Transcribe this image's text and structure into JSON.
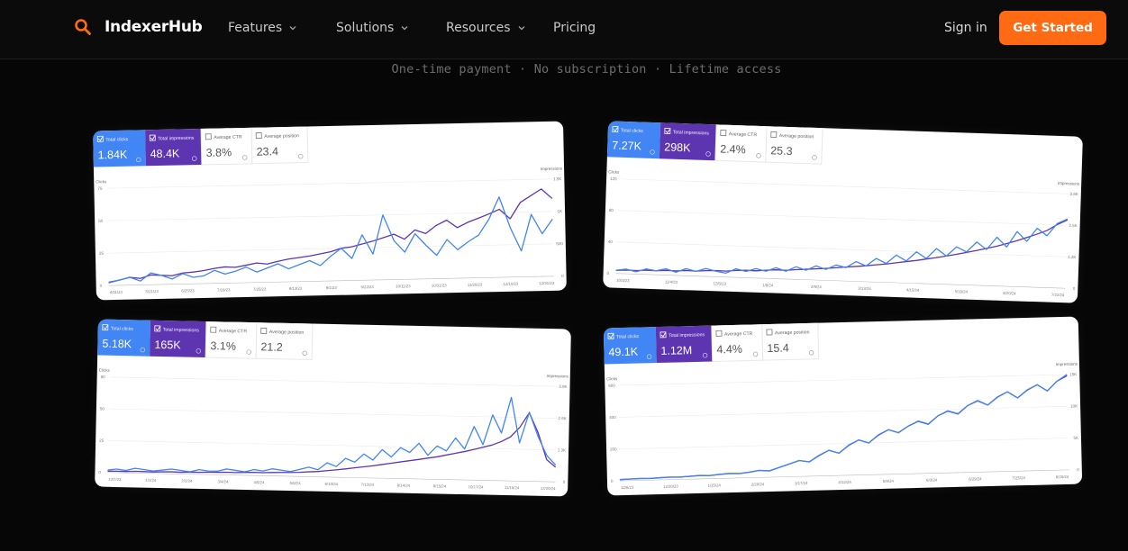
{
  "nav": {
    "brand": "IndexerHub",
    "brand_icon": "search-icon",
    "accent_color": "#ff6a13",
    "menu": [
      {
        "label": "Features",
        "has_dropdown": true
      },
      {
        "label": "Solutions",
        "has_dropdown": true
      },
      {
        "label": "Resources",
        "has_dropdown": true
      },
      {
        "label": "Pricing",
        "has_dropdown": false
      }
    ],
    "sign_in": "Sign in",
    "cta": "Get Started"
  },
  "tagline": "One-time payment · No subscription · Lifetime access",
  "chart_data": [
    {
      "type": "line",
      "metrics": [
        {
          "label": "Total clicks",
          "value": "1.84K",
          "color": "#4285f4"
        },
        {
          "label": "Total impressions",
          "value": "48.4K",
          "color": "#5e35b1"
        },
        {
          "label": "Average CTR",
          "value": "3.8%"
        },
        {
          "label": "Average position",
          "value": "23.4"
        }
      ],
      "ylabel": "Clicks",
      "y2label": "Impressions",
      "yticks": [
        "75",
        "50",
        "25",
        "0"
      ],
      "y2ticks": [
        "1.5K",
        "1K",
        "500",
        "0"
      ],
      "ylim": [
        0,
        75
      ],
      "y2lim": [
        0,
        1500
      ],
      "xticks": [
        "4/11/23",
        "5/21/23",
        "6/25/23",
        "7/19/23",
        "7/25/23",
        "8/13/23",
        "9/1/23",
        "9/22/23",
        "10/11/23",
        "10/31/23",
        "11/20/23",
        "12/10/23",
        "12/31/23"
      ],
      "series": [
        {
          "name": "Total clicks",
          "color": "#4285f4",
          "values": [
            2,
            4,
            6,
            3,
            9,
            7,
            4,
            8,
            5,
            6,
            10,
            7,
            9,
            12,
            8,
            11,
            14,
            10,
            13,
            16,
            12,
            19,
            25,
            17,
            35,
            20,
            50,
            30,
            21,
            35,
            26,
            18,
            30,
            22,
            28,
            33,
            45,
            62,
            38,
            20,
            48,
            33,
            44
          ]
        },
        {
          "name": "Total impressions",
          "color": "#5e35b1",
          "values": [
            50,
            80,
            120,
            100,
            150,
            140,
            130,
            170,
            180,
            200,
            230,
            250,
            240,
            270,
            300,
            280,
            320,
            350,
            370,
            390,
            420,
            450,
            500,
            520,
            560,
            600,
            650,
            700,
            620,
            760,
            700,
            820,
            900,
            780,
            860,
            920,
            980,
            1050,
            900,
            1150,
            1250,
            1350,
            1200
          ]
        }
      ]
    },
    {
      "type": "line",
      "metrics": [
        {
          "label": "Total clicks",
          "value": "7.27K",
          "color": "#4285f4"
        },
        {
          "label": "Total impressions",
          "value": "298K",
          "color": "#5e35b1"
        },
        {
          "label": "Average CTR",
          "value": "2.4%"
        },
        {
          "label": "Average position",
          "value": "25.3"
        }
      ],
      "ylabel": "Clicks",
      "y2label": "Impressions",
      "yticks": [
        "120",
        "80",
        "40",
        "0"
      ],
      "y2ticks": [
        "3.8K",
        "2.5K",
        "1.3K",
        "0"
      ],
      "ylim": [
        0,
        120
      ],
      "y2lim": [
        0,
        3800
      ],
      "xticks": [
        "10/3/23",
        "11/4/23",
        "12/6/23",
        "1/8/24",
        "2/9/24",
        "3/13/24",
        "4/15/24",
        "5/18/24",
        "6/20/24",
        "7/22/24"
      ],
      "series": [
        {
          "name": "Total clicks",
          "color": "#4285f4",
          "values": [
            4,
            6,
            3,
            7,
            5,
            8,
            4,
            9,
            6,
            10,
            7,
            5,
            11,
            8,
            12,
            9,
            14,
            10,
            16,
            12,
            18,
            14,
            20,
            17,
            25,
            20,
            30,
            24,
            35,
            28,
            40,
            32,
            45,
            36,
            48,
            42,
            55,
            46,
            62,
            50,
            70,
            58,
            75,
            66,
            82,
            88
          ]
        },
        {
          "name": "Total impressions",
          "color": "#5e35b1",
          "values": [
            120,
            150,
            140,
            170,
            160,
            190,
            180,
            210,
            200,
            230,
            250,
            240,
            280,
            300,
            290,
            330,
            360,
            350,
            390,
            420,
            450,
            480,
            520,
            560,
            600,
            640,
            690,
            740,
            800,
            860,
            920,
            990,
            1060,
            1140,
            1220,
            1310,
            1400,
            1500,
            1600,
            1720,
            1850,
            1990,
            2140,
            2300,
            2550,
            2750
          ]
        }
      ]
    },
    {
      "type": "line",
      "metrics": [
        {
          "label": "Total clicks",
          "value": "5.18K",
          "color": "#4285f4"
        },
        {
          "label": "Total impressions",
          "value": "165K",
          "color": "#5e35b1"
        },
        {
          "label": "Average CTR",
          "value": "3.1%"
        },
        {
          "label": "Average position",
          "value": "21.2"
        }
      ],
      "ylabel": "Clicks",
      "y2label": "Impressions",
      "yticks": [
        "80",
        "50",
        "25",
        "0"
      ],
      "y2ticks": [
        "3.9K",
        "2.6K",
        "1.3K",
        "0"
      ],
      "ylim": [
        0,
        80
      ],
      "y2lim": [
        0,
        3900
      ],
      "xticks": [
        "12/7/23",
        "1/1/24",
        "2/2/24",
        "3/4/24",
        "4/6/24",
        "5/8/24",
        "6/10/24",
        "7/12/24",
        "8/14/24",
        "9/15/24",
        "10/17/24",
        "11/18/24",
        "12/20/24"
      ],
      "series": [
        {
          "name": "Total clicks",
          "color": "#4285f4",
          "values": [
            2,
            3,
            2,
            4,
            3,
            2,
            3,
            4,
            3,
            2,
            4,
            3,
            3,
            5,
            4,
            3,
            5,
            4,
            6,
            5,
            4,
            6,
            8,
            6,
            12,
            9,
            16,
            13,
            20,
            15,
            24,
            18,
            26,
            22,
            30,
            20,
            28,
            24,
            35,
            26,
            45,
            30,
            55,
            40,
            70,
            32,
            58,
            38,
            22,
            14
          ]
        },
        {
          "name": "Total impressions",
          "color": "#5e35b1",
          "values": [
            50,
            60,
            55,
            70,
            65,
            60,
            75,
            80,
            70,
            90,
            85,
            95,
            100,
            110,
            105,
            120,
            130,
            125,
            140,
            150,
            160,
            170,
            200,
            220,
            260,
            300,
            350,
            400,
            450,
            500,
            560,
            620,
            680,
            740,
            800,
            860,
            920,
            1000,
            1080,
            1160,
            1250,
            1350,
            1450,
            1600,
            1800,
            2200,
            2800,
            2000,
            900,
            600
          ]
        }
      ]
    },
    {
      "type": "line",
      "metrics": [
        {
          "label": "Total clicks",
          "value": "49.1K",
          "color": "#4285f4"
        },
        {
          "label": "Total impressions",
          "value": "1.12M",
          "color": "#5e35b1"
        },
        {
          "label": "Average CTR",
          "value": "4.4%"
        },
        {
          "label": "Average position",
          "value": "15.4"
        }
      ],
      "ylabel": "Clicks",
      "y2label": "Impressions",
      "yticks": [
        "600",
        "400",
        "200",
        "0"
      ],
      "y2ticks": [
        "15K",
        "10K",
        "5K",
        "0"
      ],
      "ylim": [
        0,
        600
      ],
      "y2lim": [
        0,
        15000
      ],
      "xticks": [
        "12/6/23",
        "12/30/23",
        "1/25/24",
        "2/20/24",
        "3/17/24",
        "4/12/24",
        "5/8/24",
        "6/3/24",
        "6/29/24",
        "7/25/24",
        "8/20/24"
      ],
      "series": [
        {
          "name": "Total clicks",
          "color": "#4285f4",
          "values": [
            8,
            10,
            12,
            11,
            14,
            16,
            15,
            18,
            22,
            20,
            26,
            30,
            28,
            35,
            45,
            40,
            60,
            80,
            100,
            90,
            130,
            160,
            140,
            190,
            220,
            200,
            250,
            280,
            260,
            300,
            330,
            310,
            360,
            390,
            370,
            420,
            450,
            420,
            470,
            500,
            460,
            510,
            540,
            500,
            560,
            600
          ]
        },
        {
          "name": "Total impressions",
          "color": "#5e35b1",
          "values": [
            200,
            240,
            280,
            260,
            320,
            380,
            360,
            440,
            520,
            480,
            620,
            720,
            680,
            860,
            1100,
            980,
            1500,
            2000,
            2500,
            2250,
            3200,
            4000,
            3500,
            4700,
            5500,
            5000,
            6200,
            7000,
            6500,
            7500,
            8200,
            7700,
            9000,
            9700,
            9200,
            10500,
            11200,
            10500,
            11700,
            12500,
            11500,
            12700,
            13500,
            12500,
            14000,
            14800
          ]
        }
      ]
    }
  ]
}
